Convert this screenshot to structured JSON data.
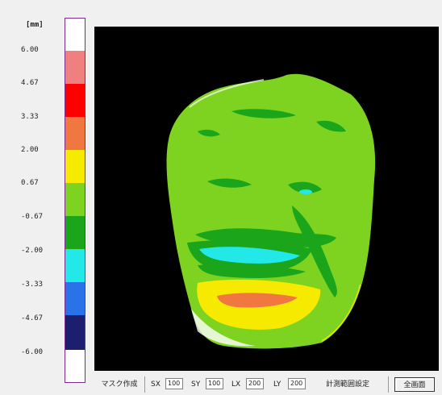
{
  "legend": {
    "unit": "[mm]",
    "ticks": [
      "6.00",
      "4.67",
      "3.33",
      "2.00",
      "0.67",
      "-0.67",
      "-2.00",
      "-3.33",
      "-4.67",
      "-6.00"
    ],
    "colors": [
      "#ffffff",
      "#f08080",
      "#ff0000",
      "#f07840",
      "#f5ea00",
      "#7ed321",
      "#1aa51a",
      "#22e8e8",
      "#2a72e8",
      "#1e1e6e",
      "#ffffff"
    ]
  },
  "toolbar": {
    "mask_button": "マスク作成",
    "sx_label": "SX",
    "sx_value": "100",
    "sy_label": "SY",
    "sy_value": "100",
    "lx_label": "LX",
    "lx_value": "200",
    "ly_label": "LY",
    "ly_value": "200",
    "measure_button": "計測範囲設定",
    "fullscreen_button": "全画面"
  },
  "map": {
    "background": "#000000",
    "face_color": "#7ed321"
  }
}
